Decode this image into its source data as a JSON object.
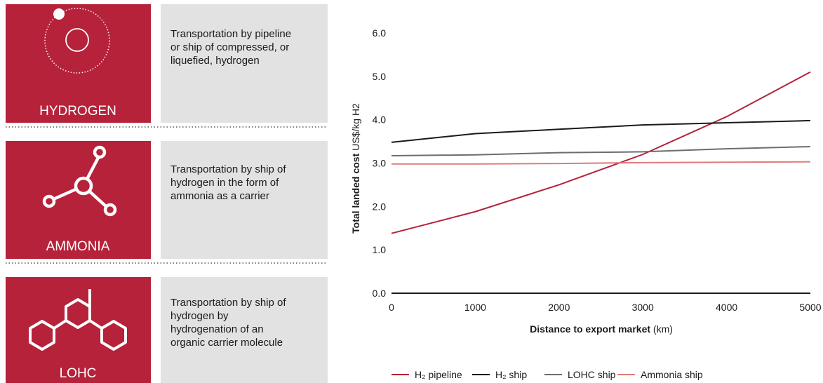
{
  "panels": [
    {
      "label": "HYDROGEN",
      "description": [
        "Transportation by pipeline",
        "or ship of compressed, or",
        "liquefied, hydrogen"
      ]
    },
    {
      "label": "AMMONIA",
      "description": [
        "Transportation by ship of",
        "hydrogen in the form of",
        "ammonia as a carrier"
      ]
    },
    {
      "label": "LOHC",
      "description": [
        "Transportation by ship of",
        "hydrogen by",
        "hydrogenation of an",
        "organic carrier molecule"
      ]
    }
  ],
  "chart_data": {
    "type": "line",
    "y_label": {
      "bold": "Total landed cost",
      "rest": "US$/kg H2"
    },
    "x_label": {
      "bold": "Distance to export market",
      "rest": "(km)"
    },
    "x": [
      0,
      1000,
      2000,
      3000,
      4000,
      5000
    ],
    "xlim": [
      0,
      5000
    ],
    "xticks": [
      0,
      1000,
      2000,
      3000,
      4000,
      5000
    ],
    "ylim": [
      0,
      6
    ],
    "yticks": [
      {
        "value": 0,
        "label": "0.0"
      },
      {
        "value": 1,
        "label": "1.0"
      },
      {
        "value": 2,
        "label": "2.0"
      },
      {
        "value": 3,
        "label": "3.0"
      },
      {
        "value": 4,
        "label": "4.0"
      },
      {
        "value": 5,
        "label": "5.0"
      },
      {
        "value": 6,
        "label": "6.0"
      }
    ],
    "grid": false,
    "legend": "bottom",
    "series": [
      {
        "name": "H₂ pipeline",
        "color": "#b5223a",
        "values": [
          1.38,
          1.88,
          2.5,
          3.2,
          4.07,
          5.1
        ]
      },
      {
        "name": "H₂ ship",
        "color": "#1a1a1a",
        "values": [
          3.48,
          3.68,
          3.78,
          3.88,
          3.93,
          3.98
        ]
      },
      {
        "name": "LOHC ship",
        "color": "#6d6d6d",
        "values": [
          3.17,
          3.19,
          3.24,
          3.26,
          3.33,
          3.38
        ]
      },
      {
        "name": "Ammonia ship",
        "color": "#e07a7a",
        "values": [
          2.98,
          2.98,
          2.99,
          3.01,
          3.02,
          3.03
        ]
      }
    ]
  }
}
